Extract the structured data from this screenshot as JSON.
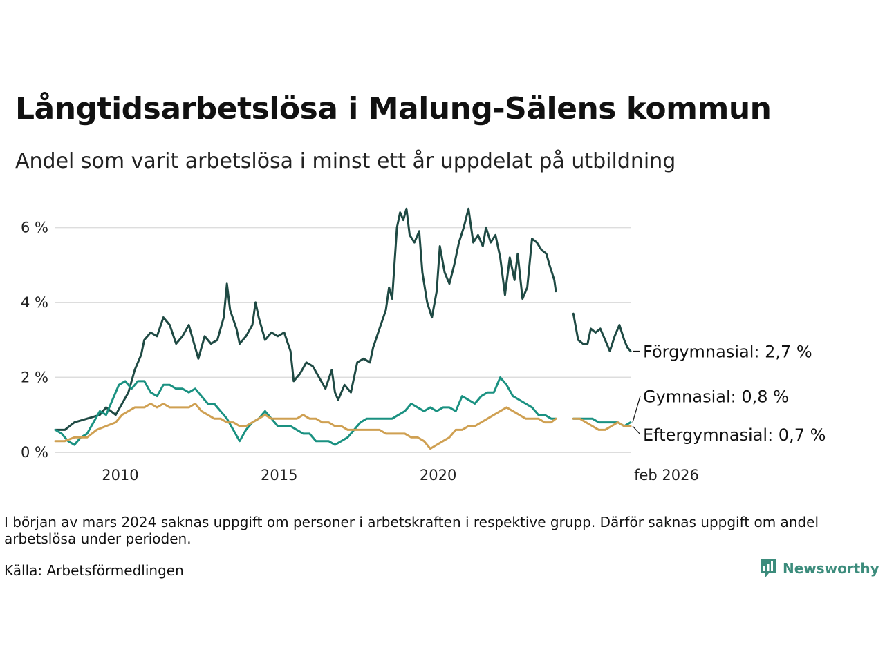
{
  "title": "Långtidsarbetslösa i Malung-Sälens kommun",
  "subtitle": "Andel som varit arbetslösa i minst ett år uppdelat på utbildning",
  "note": "I början av mars 2024 saknas uppgift om personer i arbetskraften i respektive grupp. Därför saknas uppgift om andel arbetslösa under perioden.",
  "source": "Källa: Arbetsförmedlingen",
  "logo": {
    "text": "Newsworthy",
    "icon": "bar-chart-icon"
  },
  "colors": {
    "forgymnasial": "#1f4a44",
    "gymnasial": "#1a9181",
    "eftergymnasial": "#cfa052",
    "grid": "#dddddd",
    "logo": "#3c8c7c"
  },
  "chart_data": {
    "type": "line",
    "title": "Långtidsarbetslösa i Malung-Sälens kommun",
    "xlabel": "",
    "ylabel": "",
    "x_unit": "decimal year",
    "ylim": [
      0,
      6.8
    ],
    "xlim": [
      2008.0,
      2026.1
    ],
    "yticks": [
      0,
      2,
      4,
      6
    ],
    "ytick_labels": [
      "0 %",
      "2 %",
      "4 %",
      "6 %"
    ],
    "xticks": [
      2010,
      2015,
      2020,
      2026.1
    ],
    "xtick_labels": [
      "2010",
      "2015",
      "2020",
      "feb 2026"
    ],
    "grid": true,
    "legend": "direct labels at right end",
    "gap": [
      2023.75,
      2024.3
    ],
    "series": [
      {
        "name": "Förgymnasial",
        "end_label": "Förgymnasial: 2,7 %",
        "color": "#1f4a44",
        "points": [
          [
            2008.0,
            0.6
          ],
          [
            2008.3,
            0.6
          ],
          [
            2008.6,
            0.8
          ],
          [
            2009.0,
            0.9
          ],
          [
            2009.4,
            1.0
          ],
          [
            2009.6,
            1.2
          ],
          [
            2009.9,
            1.0
          ],
          [
            2010.1,
            1.3
          ],
          [
            2010.3,
            1.6
          ],
          [
            2010.5,
            2.2
          ],
          [
            2010.7,
            2.6
          ],
          [
            2010.8,
            3.0
          ],
          [
            2011.0,
            3.2
          ],
          [
            2011.2,
            3.1
          ],
          [
            2011.4,
            3.6
          ],
          [
            2011.6,
            3.4
          ],
          [
            2011.8,
            2.9
          ],
          [
            2012.0,
            3.1
          ],
          [
            2012.2,
            3.4
          ],
          [
            2012.4,
            2.8
          ],
          [
            2012.5,
            2.5
          ],
          [
            2012.7,
            3.1
          ],
          [
            2012.9,
            2.9
          ],
          [
            2013.1,
            3.0
          ],
          [
            2013.3,
            3.6
          ],
          [
            2013.4,
            4.5
          ],
          [
            2013.5,
            3.8
          ],
          [
            2013.7,
            3.3
          ],
          [
            2013.8,
            2.9
          ],
          [
            2014.0,
            3.1
          ],
          [
            2014.2,
            3.4
          ],
          [
            2014.3,
            4.0
          ],
          [
            2014.4,
            3.6
          ],
          [
            2014.6,
            3.0
          ],
          [
            2014.8,
            3.2
          ],
          [
            2015.0,
            3.1
          ],
          [
            2015.2,
            3.2
          ],
          [
            2015.4,
            2.7
          ],
          [
            2015.5,
            1.9
          ],
          [
            2015.7,
            2.1
          ],
          [
            2015.9,
            2.4
          ],
          [
            2016.1,
            2.3
          ],
          [
            2016.3,
            2.0
          ],
          [
            2016.5,
            1.7
          ],
          [
            2016.7,
            2.2
          ],
          [
            2016.8,
            1.6
          ],
          [
            2016.9,
            1.4
          ],
          [
            2017.1,
            1.8
          ],
          [
            2017.3,
            1.6
          ],
          [
            2017.5,
            2.4
          ],
          [
            2017.7,
            2.5
          ],
          [
            2017.9,
            2.4
          ],
          [
            2018.0,
            2.8
          ],
          [
            2018.2,
            3.3
          ],
          [
            2018.4,
            3.8
          ],
          [
            2018.5,
            4.4
          ],
          [
            2018.6,
            4.1
          ],
          [
            2018.75,
            6.0
          ],
          [
            2018.85,
            6.4
          ],
          [
            2018.95,
            6.2
          ],
          [
            2019.05,
            6.5
          ],
          [
            2019.15,
            5.8
          ],
          [
            2019.3,
            5.6
          ],
          [
            2019.45,
            5.9
          ],
          [
            2019.55,
            4.8
          ],
          [
            2019.7,
            4.0
          ],
          [
            2019.85,
            3.6
          ],
          [
            2020.0,
            4.3
          ],
          [
            2020.1,
            5.5
          ],
          [
            2020.25,
            4.8
          ],
          [
            2020.4,
            4.5
          ],
          [
            2020.55,
            5.0
          ],
          [
            2020.7,
            5.6
          ],
          [
            2020.85,
            6.0
          ],
          [
            2021.0,
            6.5
          ],
          [
            2021.15,
            5.6
          ],
          [
            2021.3,
            5.8
          ],
          [
            2021.45,
            5.5
          ],
          [
            2021.55,
            6.0
          ],
          [
            2021.7,
            5.6
          ],
          [
            2021.85,
            5.8
          ],
          [
            2022.0,
            5.2
          ],
          [
            2022.15,
            4.2
          ],
          [
            2022.3,
            5.2
          ],
          [
            2022.45,
            4.6
          ],
          [
            2022.55,
            5.3
          ],
          [
            2022.7,
            4.1
          ],
          [
            2022.85,
            4.4
          ],
          [
            2023.0,
            5.7
          ],
          [
            2023.15,
            5.6
          ],
          [
            2023.3,
            5.4
          ],
          [
            2023.45,
            5.3
          ],
          [
            2023.55,
            5.0
          ],
          [
            2023.7,
            4.6
          ],
          [
            2023.75,
            4.3
          ],
          [
            2024.3,
            3.7
          ],
          [
            2024.45,
            3.0
          ],
          [
            2024.6,
            2.9
          ],
          [
            2024.75,
            2.9
          ],
          [
            2024.85,
            3.3
          ],
          [
            2025.0,
            3.2
          ],
          [
            2025.15,
            3.3
          ],
          [
            2025.3,
            3.0
          ],
          [
            2025.45,
            2.7
          ],
          [
            2025.6,
            3.1
          ],
          [
            2025.75,
            3.4
          ],
          [
            2025.9,
            3.0
          ],
          [
            2026.0,
            2.8
          ],
          [
            2026.1,
            2.7
          ]
        ]
      },
      {
        "name": "Gymnasial",
        "end_label": "Gymnasial: 0,8 %",
        "color": "#1a9181",
        "points": [
          [
            2008.0,
            0.6
          ],
          [
            2008.2,
            0.5
          ],
          [
            2008.4,
            0.3
          ],
          [
            2008.6,
            0.2
          ],
          [
            2008.8,
            0.4
          ],
          [
            2009.0,
            0.5
          ],
          [
            2009.2,
            0.8
          ],
          [
            2009.4,
            1.1
          ],
          [
            2009.6,
            1.0
          ],
          [
            2009.8,
            1.4
          ],
          [
            2010.0,
            1.8
          ],
          [
            2010.2,
            1.9
          ],
          [
            2010.4,
            1.7
          ],
          [
            2010.6,
            1.9
          ],
          [
            2010.8,
            1.9
          ],
          [
            2011.0,
            1.6
          ],
          [
            2011.2,
            1.5
          ],
          [
            2011.4,
            1.8
          ],
          [
            2011.6,
            1.8
          ],
          [
            2011.8,
            1.7
          ],
          [
            2012.0,
            1.7
          ],
          [
            2012.2,
            1.6
          ],
          [
            2012.4,
            1.7
          ],
          [
            2012.6,
            1.5
          ],
          [
            2012.8,
            1.3
          ],
          [
            2013.0,
            1.3
          ],
          [
            2013.2,
            1.1
          ],
          [
            2013.4,
            0.9
          ],
          [
            2013.6,
            0.6
          ],
          [
            2013.8,
            0.3
          ],
          [
            2014.0,
            0.6
          ],
          [
            2014.2,
            0.8
          ],
          [
            2014.4,
            0.9
          ],
          [
            2014.6,
            1.1
          ],
          [
            2014.8,
            0.9
          ],
          [
            2015.0,
            0.7
          ],
          [
            2015.2,
            0.7
          ],
          [
            2015.4,
            0.7
          ],
          [
            2015.6,
            0.6
          ],
          [
            2015.8,
            0.5
          ],
          [
            2016.0,
            0.5
          ],
          [
            2016.2,
            0.3
          ],
          [
            2016.4,
            0.3
          ],
          [
            2016.6,
            0.3
          ],
          [
            2016.8,
            0.2
          ],
          [
            2017.0,
            0.3
          ],
          [
            2017.2,
            0.4
          ],
          [
            2017.4,
            0.6
          ],
          [
            2017.6,
            0.8
          ],
          [
            2017.8,
            0.9
          ],
          [
            2018.0,
            0.9
          ],
          [
            2018.2,
            0.9
          ],
          [
            2018.4,
            0.9
          ],
          [
            2018.6,
            0.9
          ],
          [
            2018.8,
            1.0
          ],
          [
            2019.0,
            1.1
          ],
          [
            2019.2,
            1.3
          ],
          [
            2019.4,
            1.2
          ],
          [
            2019.6,
            1.1
          ],
          [
            2019.8,
            1.2
          ],
          [
            2020.0,
            1.1
          ],
          [
            2020.2,
            1.2
          ],
          [
            2020.4,
            1.2
          ],
          [
            2020.6,
            1.1
          ],
          [
            2020.8,
            1.5
          ],
          [
            2021.0,
            1.4
          ],
          [
            2021.2,
            1.3
          ],
          [
            2021.4,
            1.5
          ],
          [
            2021.6,
            1.6
          ],
          [
            2021.8,
            1.6
          ],
          [
            2022.0,
            2.0
          ],
          [
            2022.2,
            1.8
          ],
          [
            2022.4,
            1.5
          ],
          [
            2022.6,
            1.4
          ],
          [
            2022.8,
            1.3
          ],
          [
            2023.0,
            1.2
          ],
          [
            2023.2,
            1.0
          ],
          [
            2023.4,
            1.0
          ],
          [
            2023.6,
            0.9
          ],
          [
            2023.75,
            0.9
          ],
          [
            2024.3,
            0.9
          ],
          [
            2024.5,
            0.9
          ],
          [
            2024.7,
            0.9
          ],
          [
            2024.9,
            0.9
          ],
          [
            2025.1,
            0.8
          ],
          [
            2025.3,
            0.8
          ],
          [
            2025.5,
            0.8
          ],
          [
            2025.7,
            0.8
          ],
          [
            2025.9,
            0.7
          ],
          [
            2026.1,
            0.8
          ]
        ]
      },
      {
        "name": "Eftergymnasial",
        "end_label": "Eftergymnasial: 0,7 %",
        "color": "#cfa052",
        "points": [
          [
            2008.0,
            0.3
          ],
          [
            2008.3,
            0.3
          ],
          [
            2008.6,
            0.4
          ],
          [
            2009.0,
            0.4
          ],
          [
            2009.3,
            0.6
          ],
          [
            2009.6,
            0.7
          ],
          [
            2009.9,
            0.8
          ],
          [
            2010.1,
            1.0
          ],
          [
            2010.3,
            1.1
          ],
          [
            2010.5,
            1.2
          ],
          [
            2010.8,
            1.2
          ],
          [
            2011.0,
            1.3
          ],
          [
            2011.2,
            1.2
          ],
          [
            2011.4,
            1.3
          ],
          [
            2011.6,
            1.2
          ],
          [
            2011.8,
            1.2
          ],
          [
            2012.0,
            1.2
          ],
          [
            2012.2,
            1.2
          ],
          [
            2012.4,
            1.3
          ],
          [
            2012.6,
            1.1
          ],
          [
            2012.8,
            1.0
          ],
          [
            2013.0,
            0.9
          ],
          [
            2013.2,
            0.9
          ],
          [
            2013.4,
            0.8
          ],
          [
            2013.6,
            0.8
          ],
          [
            2013.8,
            0.7
          ],
          [
            2014.0,
            0.7
          ],
          [
            2014.2,
            0.8
          ],
          [
            2014.4,
            0.9
          ],
          [
            2014.6,
            1.0
          ],
          [
            2014.8,
            0.9
          ],
          [
            2015.0,
            0.9
          ],
          [
            2015.2,
            0.9
          ],
          [
            2015.4,
            0.9
          ],
          [
            2015.6,
            0.9
          ],
          [
            2015.8,
            1.0
          ],
          [
            2016.0,
            0.9
          ],
          [
            2016.2,
            0.9
          ],
          [
            2016.4,
            0.8
          ],
          [
            2016.6,
            0.8
          ],
          [
            2016.8,
            0.7
          ],
          [
            2017.0,
            0.7
          ],
          [
            2017.2,
            0.6
          ],
          [
            2017.4,
            0.6
          ],
          [
            2017.6,
            0.6
          ],
          [
            2017.8,
            0.6
          ],
          [
            2018.0,
            0.6
          ],
          [
            2018.2,
            0.6
          ],
          [
            2018.4,
            0.5
          ],
          [
            2018.6,
            0.5
          ],
          [
            2018.8,
            0.5
          ],
          [
            2019.0,
            0.5
          ],
          [
            2019.2,
            0.4
          ],
          [
            2019.4,
            0.4
          ],
          [
            2019.6,
            0.3
          ],
          [
            2019.8,
            0.1
          ],
          [
            2020.0,
            0.2
          ],
          [
            2020.2,
            0.3
          ],
          [
            2020.4,
            0.4
          ],
          [
            2020.6,
            0.6
          ],
          [
            2020.8,
            0.6
          ],
          [
            2021.0,
            0.7
          ],
          [
            2021.2,
            0.7
          ],
          [
            2021.4,
            0.8
          ],
          [
            2021.6,
            0.9
          ],
          [
            2021.8,
            1.0
          ],
          [
            2022.0,
            1.1
          ],
          [
            2022.2,
            1.2
          ],
          [
            2022.4,
            1.1
          ],
          [
            2022.6,
            1.0
          ],
          [
            2022.8,
            0.9
          ],
          [
            2023.0,
            0.9
          ],
          [
            2023.2,
            0.9
          ],
          [
            2023.4,
            0.8
          ],
          [
            2023.6,
            0.8
          ],
          [
            2023.75,
            0.9
          ],
          [
            2024.3,
            0.9
          ],
          [
            2024.5,
            0.9
          ],
          [
            2024.7,
            0.8
          ],
          [
            2024.9,
            0.7
          ],
          [
            2025.1,
            0.6
          ],
          [
            2025.3,
            0.6
          ],
          [
            2025.5,
            0.7
          ],
          [
            2025.7,
            0.8
          ],
          [
            2025.9,
            0.7
          ],
          [
            2026.1,
            0.7
          ]
        ]
      }
    ]
  }
}
